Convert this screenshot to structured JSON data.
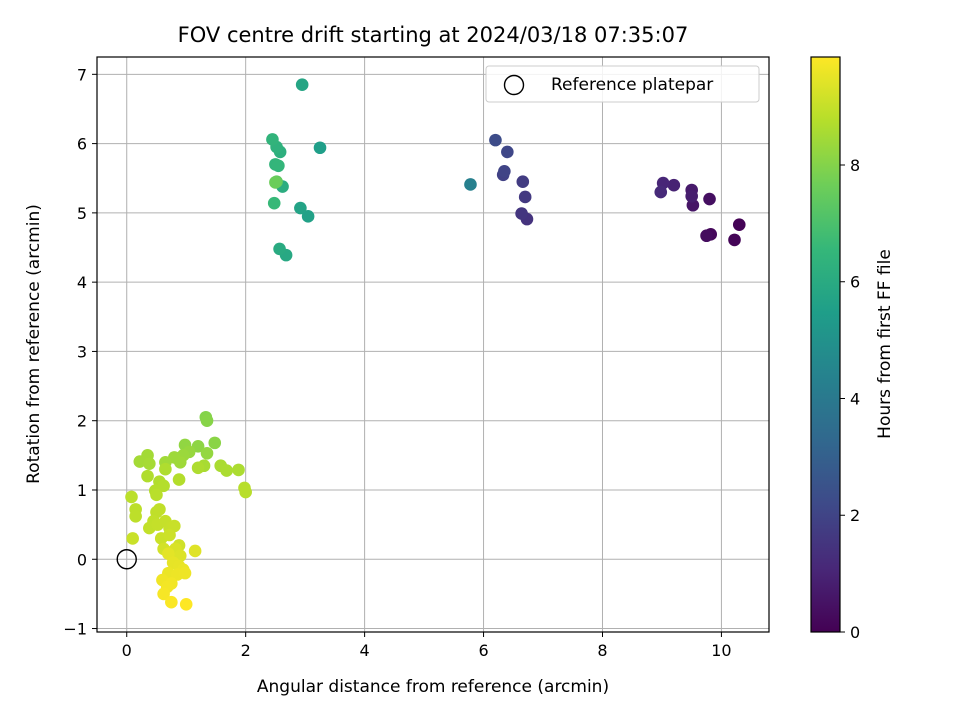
{
  "chart_data": {
    "type": "scatter",
    "title": "FOV centre drift starting at 2024/03/18 07:35:07",
    "xlabel": "Angular distance from reference (arcmin)",
    "ylabel": "Rotation from reference (arcmin)",
    "xlim": [
      -0.5,
      10.8
    ],
    "ylim": [
      -1.05,
      7.25
    ],
    "xticks": [
      0,
      2,
      4,
      6,
      8,
      10
    ],
    "yticks": [
      -1,
      0,
      1,
      2,
      3,
      4,
      5,
      6,
      7
    ],
    "grid": true,
    "legend": {
      "position": "top-right",
      "entries": [
        "Reference platepar"
      ]
    },
    "reference_point": {
      "x": 0,
      "y": 0,
      "label": "Reference platepar"
    },
    "colorbar": {
      "label": "Hours from first FF file",
      "range": [
        0,
        9.85
      ],
      "ticks": [
        0,
        2,
        4,
        6,
        8
      ],
      "colormap": "viridis"
    },
    "points": [
      [
        10.3,
        4.83,
        0.05
      ],
      [
        10.22,
        4.61,
        0.1
      ],
      [
        9.82,
        4.69,
        0.2
      ],
      [
        9.75,
        4.67,
        0.3
      ],
      [
        9.8,
        5.2,
        0.4
      ],
      [
        9.52,
        5.11,
        0.55
      ],
      [
        9.5,
        5.33,
        0.7
      ],
      [
        9.5,
        5.24,
        0.8
      ],
      [
        9.2,
        5.4,
        0.95
      ],
      [
        9.02,
        5.43,
        1.05
      ],
      [
        8.98,
        5.3,
        1.15
      ],
      [
        6.73,
        4.91,
        1.45
      ],
      [
        6.64,
        4.99,
        1.55
      ],
      [
        6.7,
        5.23,
        1.65
      ],
      [
        6.66,
        5.45,
        1.75
      ],
      [
        6.33,
        5.55,
        1.9
      ],
      [
        6.35,
        5.6,
        2.0
      ],
      [
        6.4,
        5.88,
        2.1
      ],
      [
        6.2,
        6.05,
        2.25
      ],
      [
        5.78,
        5.41,
        4.3
      ],
      [
        3.25,
        5.94,
        5.5
      ],
      [
        3.05,
        4.95,
        5.6
      ],
      [
        2.92,
        5.07,
        5.7
      ],
      [
        2.95,
        6.85,
        5.8
      ],
      [
        2.68,
        4.39,
        5.9
      ],
      [
        2.57,
        4.48,
        6.0
      ],
      [
        2.62,
        5.38,
        6.1
      ],
      [
        2.58,
        5.88,
        6.2
      ],
      [
        2.52,
        5.95,
        6.3
      ],
      [
        2.45,
        6.06,
        6.4
      ],
      [
        2.5,
        5.7,
        6.45
      ],
      [
        2.55,
        5.68,
        6.5
      ],
      [
        2.48,
        5.14,
        6.6
      ],
      [
        2.52,
        5.45,
        7.4
      ],
      [
        2.5,
        5.44,
        7.6
      ],
      [
        1.33,
        2.05,
        8.0
      ],
      [
        1.35,
        2.0,
        8.05
      ],
      [
        1.48,
        1.68,
        8.1
      ],
      [
        1.2,
        1.63,
        8.15
      ],
      [
        0.98,
        1.65,
        8.2
      ],
      [
        1.35,
        1.53,
        8.25
      ],
      [
        1.05,
        1.55,
        8.3
      ],
      [
        0.95,
        1.5,
        8.35
      ],
      [
        0.8,
        1.47,
        8.4
      ],
      [
        0.9,
        1.4,
        8.42
      ],
      [
        0.65,
        1.4,
        8.45
      ],
      [
        0.35,
        1.5,
        8.48
      ],
      [
        0.22,
        1.41,
        8.5
      ],
      [
        0.38,
        1.38,
        8.52
      ],
      [
        1.3,
        1.35,
        8.55
      ],
      [
        1.58,
        1.35,
        8.58
      ],
      [
        1.68,
        1.28,
        8.6
      ],
      [
        1.88,
        1.29,
        8.62
      ],
      [
        1.2,
        1.32,
        8.64
      ],
      [
        0.65,
        1.3,
        8.66
      ],
      [
        0.35,
        1.2,
        8.68
      ],
      [
        0.55,
        1.12,
        8.7
      ],
      [
        0.88,
        1.15,
        8.72
      ],
      [
        0.62,
        1.06,
        8.74
      ],
      [
        0.48,
        0.99,
        8.76
      ],
      [
        1.98,
        1.03,
        8.78
      ],
      [
        2.0,
        0.97,
        8.8
      ],
      [
        0.5,
        0.93,
        8.82
      ],
      [
        0.08,
        0.9,
        8.84
      ],
      [
        0.15,
        0.72,
        8.86
      ],
      [
        0.15,
        0.62,
        8.88
      ],
      [
        0.5,
        0.68,
        8.9
      ],
      [
        0.55,
        0.72,
        8.92
      ],
      [
        0.45,
        0.55,
        8.94
      ],
      [
        0.38,
        0.45,
        8.96
      ],
      [
        0.52,
        0.5,
        8.98
      ],
      [
        0.65,
        0.55,
        9.0
      ],
      [
        0.72,
        0.45,
        9.02
      ],
      [
        0.8,
        0.48,
        9.04
      ],
      [
        0.1,
        0.3,
        9.06
      ],
      [
        0.58,
        0.3,
        9.08
      ],
      [
        0.72,
        0.35,
        9.1
      ],
      [
        0.88,
        0.2,
        9.15
      ],
      [
        0.62,
        0.15,
        9.2
      ],
      [
        0.75,
        0.1,
        9.25
      ],
      [
        0.82,
        0.15,
        9.3
      ],
      [
        0.9,
        0.05,
        9.35
      ],
      [
        1.15,
        0.12,
        9.4
      ],
      [
        0.7,
        0.08,
        9.45
      ],
      [
        0.78,
        -0.05,
        9.5
      ],
      [
        0.88,
        -0.1,
        9.52
      ],
      [
        0.95,
        -0.15,
        9.55
      ],
      [
        0.7,
        -0.2,
        9.58
      ],
      [
        0.85,
        -0.22,
        9.6
      ],
      [
        0.98,
        -0.2,
        9.62
      ],
      [
        0.6,
        -0.3,
        9.65
      ],
      [
        0.75,
        -0.35,
        9.68
      ],
      [
        0.68,
        -0.4,
        9.7
      ],
      [
        0.62,
        -0.5,
        9.75
      ],
      [
        0.75,
        -0.62,
        9.8
      ],
      [
        1.0,
        -0.65,
        9.85
      ]
    ]
  }
}
